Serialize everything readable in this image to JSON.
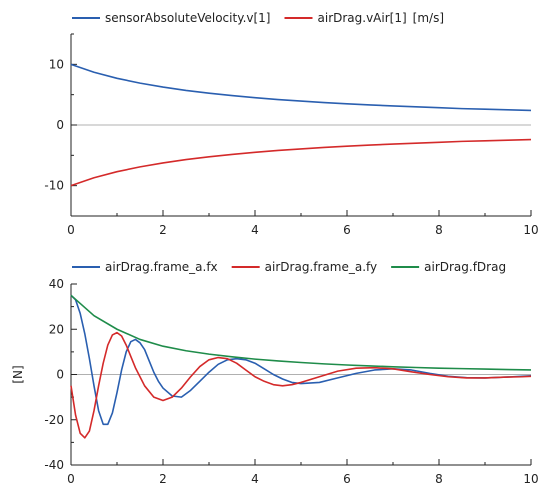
{
  "chart_data": [
    {
      "type": "line",
      "title": "",
      "xlabel": "",
      "ylabel": "",
      "unit_note": "[m/s]",
      "xlim": [
        0,
        10
      ],
      "ylim": [
        -15,
        15
      ],
      "x_ticks": [
        0,
        2,
        4,
        6,
        8,
        10
      ],
      "y_ticks": [
        -10,
        0,
        10
      ],
      "grid": false,
      "legend_position": "top",
      "series": [
        {
          "name": "sensorAbsoluteVelocity.v[1]",
          "color": "#2a5fb0",
          "x": [
            0,
            0.5,
            1,
            1.5,
            2,
            2.5,
            3,
            3.5,
            4,
            4.5,
            5,
            5.5,
            6,
            6.5,
            7,
            7.5,
            8,
            8.5,
            9,
            9.5,
            10
          ],
          "y": [
            10.0,
            8.7,
            7.7,
            6.9,
            6.25,
            5.7,
            5.25,
            4.85,
            4.5,
            4.2,
            3.95,
            3.7,
            3.5,
            3.3,
            3.15,
            3.0,
            2.85,
            2.7,
            2.6,
            2.5,
            2.4
          ]
        },
        {
          "name": "airDrag.vAir[1]",
          "color": "#d42a2a",
          "x": [
            0,
            0.5,
            1,
            1.5,
            2,
            2.5,
            3,
            3.5,
            4,
            4.5,
            5,
            5.5,
            6,
            6.5,
            7,
            7.5,
            8,
            8.5,
            9,
            9.5,
            10
          ],
          "y": [
            -10.0,
            -8.7,
            -7.7,
            -6.9,
            -6.25,
            -5.7,
            -5.25,
            -4.85,
            -4.5,
            -4.2,
            -3.95,
            -3.7,
            -3.5,
            -3.3,
            -3.15,
            -3.0,
            -2.85,
            -2.7,
            -2.6,
            -2.5,
            -2.4
          ]
        }
      ]
    },
    {
      "type": "line",
      "title": "",
      "xlabel": "",
      "ylabel": "[N]",
      "xlim": [
        0,
        10
      ],
      "ylim": [
        -40,
        40
      ],
      "x_ticks": [
        0,
        2,
        4,
        6,
        8,
        10
      ],
      "y_ticks": [
        -40,
        -20,
        0,
        20,
        40
      ],
      "grid": false,
      "legend_position": "top",
      "series": [
        {
          "name": "airDrag.frame_a.fx",
          "color": "#2a5fb0",
          "x": [
            0,
            0.1,
            0.2,
            0.3,
            0.4,
            0.5,
            0.6,
            0.7,
            0.8,
            0.9,
            1.0,
            1.1,
            1.2,
            1.3,
            1.4,
            1.5,
            1.6,
            1.7,
            1.8,
            1.9,
            2.0,
            2.2,
            2.4,
            2.6,
            2.8,
            3.0,
            3.2,
            3.4,
            3.6,
            3.8,
            4.0,
            4.2,
            4.4,
            4.6,
            4.8,
            5.0,
            5.4,
            5.8,
            6.2,
            6.6,
            7.0,
            7.4,
            7.8,
            8.2,
            8.6,
            9.0,
            9.4,
            9.8,
            10.0
          ],
          "y": [
            35,
            33,
            27,
            18,
            7,
            -5,
            -16,
            -22,
            -22,
            -17,
            -8,
            2,
            10,
            14.5,
            15.5,
            14,
            11,
            6,
            1,
            -3,
            -6,
            -9.5,
            -10,
            -7,
            -3,
            1,
            4.5,
            6.5,
            7,
            6.5,
            5,
            2.5,
            0,
            -2,
            -3.5,
            -4,
            -3.5,
            -1.5,
            0.5,
            2,
            2.5,
            2,
            0.5,
            -0.8,
            -1.4,
            -1.5,
            -1.2,
            -0.8,
            -0.6
          ]
        },
        {
          "name": "airDrag.frame_a.fy",
          "color": "#d42a2a",
          "x": [
            0,
            0.1,
            0.2,
            0.3,
            0.4,
            0.5,
            0.6,
            0.7,
            0.8,
            0.9,
            1.0,
            1.1,
            1.2,
            1.3,
            1.4,
            1.6,
            1.8,
            2.0,
            2.2,
            2.4,
            2.6,
            2.8,
            3.0,
            3.2,
            3.4,
            3.6,
            3.8,
            4.0,
            4.2,
            4.4,
            4.6,
            4.8,
            5.0,
            5.4,
            5.8,
            6.2,
            6.6,
            7.0,
            7.4,
            7.8,
            8.2,
            8.6,
            9.0,
            9.4,
            9.8,
            10.0
          ],
          "y": [
            -5,
            -18,
            -26,
            -28,
            -25,
            -16,
            -5,
            5,
            13,
            17.5,
            18.5,
            17,
            13,
            8,
            3,
            -5,
            -10,
            -11.5,
            -10,
            -6,
            -1,
            3.5,
            6.5,
            7.5,
            7,
            5,
            2,
            -1,
            -3,
            -4.5,
            -5,
            -4.5,
            -3.5,
            -1,
            1.5,
            2.8,
            3,
            2.5,
            1.2,
            0,
            -1,
            -1.5,
            -1.5,
            -1.2,
            -1,
            -0.8
          ]
        },
        {
          "name": "airDrag.fDrag",
          "color": "#1f8c4a",
          "x": [
            0,
            0.5,
            1,
            1.5,
            2,
            2.5,
            3,
            3.5,
            4,
            4.5,
            5,
            5.5,
            6,
            6.5,
            7,
            7.5,
            8,
            8.5,
            9,
            9.5,
            10
          ],
          "y": [
            35.0,
            26.0,
            20.0,
            15.5,
            12.5,
            10.5,
            9.0,
            7.8,
            6.8,
            6.0,
            5.3,
            4.7,
            4.2,
            3.8,
            3.4,
            3.1,
            2.8,
            2.6,
            2.4,
            2.2,
            2.0
          ]
        }
      ]
    }
  ],
  "colors": {
    "axis": "#222222",
    "zero_line": "#b0b0b0"
  }
}
